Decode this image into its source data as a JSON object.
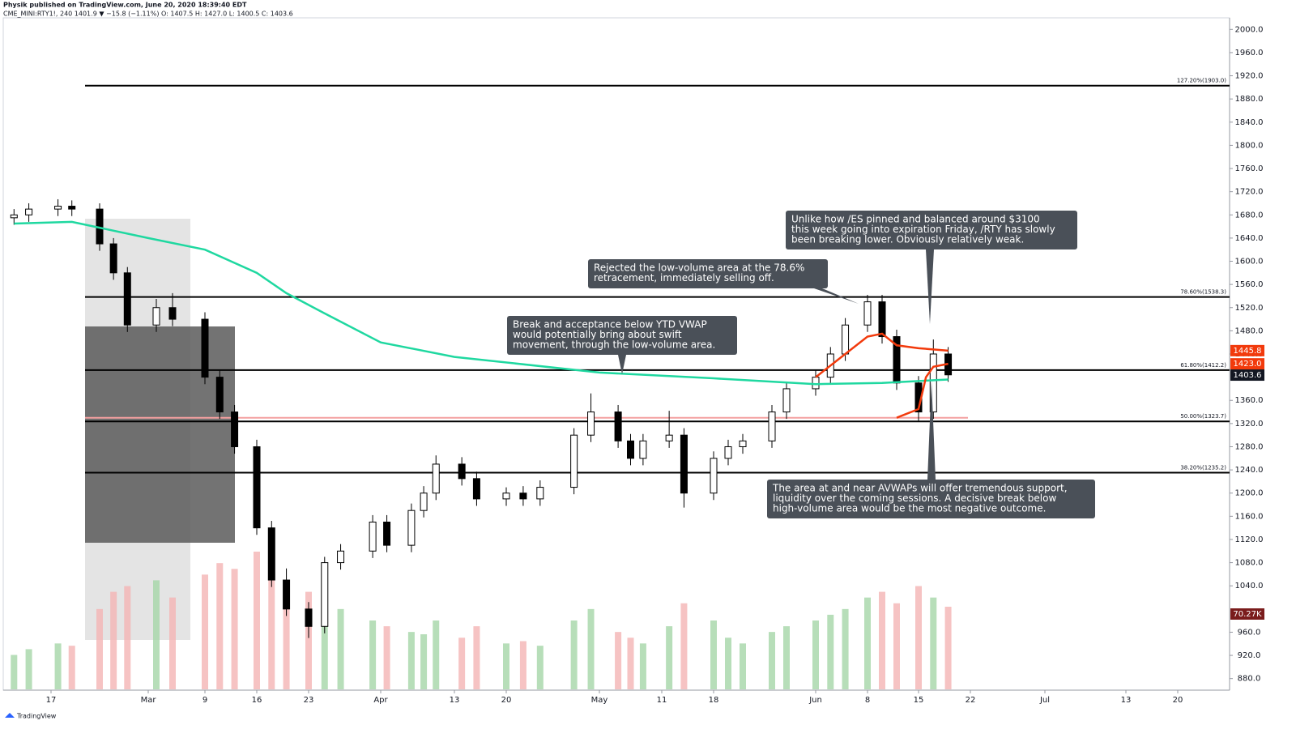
{
  "chart_data": {
    "type": "candlestick",
    "header": "Physik published on TradingView.com, June 20, 2020 18:39:40 EDT",
    "subheader": "CME_MINI:RTY1!, 240  1401.9 ▼ −15.8 (−1.11%) O: 1407.5 H: 1427.0 L: 1400.5 C: 1403.6",
    "footer": "TradingView",
    "x": [
      "Feb 12",
      "Feb 14",
      "Feb 18",
      "Feb 20",
      "Feb 24",
      "Feb 26",
      "Feb 28",
      "Mar 3",
      "Mar 5",
      "Mar 9",
      "Mar 11",
      "Mar 13",
      "Mar 16",
      "Mar 18",
      "Mar 20",
      "Mar 23",
      "Mar 25",
      "Mar 27",
      "Mar 31",
      "Apr 2",
      "Apr 6",
      "Apr 8",
      "Apr 10",
      "Apr 14",
      "Apr 16",
      "Apr 20",
      "Apr 22",
      "Apr 24",
      "Apr 28",
      "Apr 30",
      "May 4",
      "May 6",
      "May 8",
      "May 12",
      "May 14",
      "May 18",
      "May 20",
      "May 22",
      "May 26",
      "May 28",
      "Jun 1",
      "Jun 3",
      "Jun 5",
      "Jun 8",
      "Jun 10",
      "Jun 12",
      "Jun 15",
      "Jun 17",
      "Jun 19"
    ],
    "open": [
      1675,
      1680,
      1690,
      1695,
      1690,
      1630,
      1580,
      1490,
      1520,
      1500,
      1400,
      1340,
      1280,
      1140,
      1050,
      1000,
      970,
      1080,
      1100,
      1150,
      1110,
      1170,
      1200,
      1250,
      1225,
      1190,
      1200,
      1190,
      1210,
      1300,
      1340,
      1290,
      1260,
      1290,
      1300,
      1200,
      1260,
      1280,
      1290,
      1340,
      1380,
      1400,
      1440,
      1490,
      1530,
      1470,
      1390,
      1340,
      1440
    ],
    "high": [
      1690,
      1700,
      1707,
      1705,
      1700,
      1640,
      1590,
      1535,
      1545,
      1512,
      1412,
      1352,
      1292,
      1152,
      1070,
      1012,
      1090,
      1112,
      1162,
      1162,
      1182,
      1212,
      1265,
      1262,
      1237,
      1210,
      1212,
      1222,
      1312,
      1372,
      1352,
      1302,
      1302,
      1342,
      1312,
      1272,
      1292,
      1302,
      1352,
      1392,
      1412,
      1452,
      1502,
      1542,
      1542,
      1482,
      1402,
      1465,
      1452
    ],
    "low": [
      1663,
      1668,
      1678,
      1678,
      1618,
      1568,
      1478,
      1478,
      1488,
      1388,
      1328,
      1268,
      1128,
      1038,
      988,
      950,
      958,
      1068,
      1088,
      1098,
      1098,
      1158,
      1188,
      1213,
      1178,
      1178,
      1178,
      1178,
      1198,
      1288,
      1278,
      1248,
      1248,
      1278,
      1175,
      1188,
      1248,
      1268,
      1278,
      1328,
      1368,
      1388,
      1428,
      1478,
      1458,
      1378,
      1323,
      1328,
      1392
    ],
    "close": [
      1680,
      1690,
      1695,
      1690,
      1630,
      1580,
      1490,
      1520,
      1500,
      1400,
      1340,
      1280,
      1140,
      1050,
      1000,
      970,
      1080,
      1100,
      1150,
      1110,
      1170,
      1200,
      1250,
      1225,
      1190,
      1200,
      1190,
      1210,
      1300,
      1340,
      1290,
      1260,
      1290,
      1300,
      1200,
      1260,
      1280,
      1290,
      1340,
      1380,
      1400,
      1440,
      1490,
      1530,
      1470,
      1390,
      1340,
      1440,
      1404
    ],
    "volume": [
      30,
      35,
      40,
      38,
      70,
      85,
      90,
      95,
      80,
      100,
      110,
      105,
      120,
      95,
      90,
      85,
      75,
      70,
      60,
      55,
      50,
      48,
      60,
      45,
      55,
      40,
      42,
      38,
      60,
      70,
      50,
      45,
      40,
      55,
      75,
      60,
      45,
      40,
      50,
      55,
      60,
      65,
      70,
      80,
      85,
      75,
      90,
      80,
      72
    ],
    "lines": [
      {
        "color": "#1fd8a0",
        "x": [
          "Feb 12",
          "Feb 20",
          "Mar 2",
          "Mar 9",
          "Mar 16",
          "Mar 20",
          "Mar 25",
          "Apr 1",
          "Apr 13",
          "May 1",
          "May 18",
          "Jun 1",
          "Jun 10",
          "Jun 19"
        ],
        "values": [
          1665,
          1668,
          1640,
          1620,
          1580,
          1545,
          1510,
          1460,
          1435,
          1408,
          1398,
          1388,
          1390,
          1396
        ]
      },
      {
        "color": "#f23a0c",
        "x": [
          "Jun 1",
          "Jun 4",
          "Jun 8",
          "Jun 10",
          "Jun 12",
          "Jun 15",
          "Jun 19"
        ],
        "values": [
          1400,
          1430,
          1470,
          1475,
          1455,
          1450,
          1445.8
        ]
      },
      {
        "color": "#f23a0c",
        "x": [
          "Jun 12",
          "Jun 15",
          "Jun 16",
          "Jun 17",
          "Jun 19"
        ],
        "values": [
          1330,
          1345,
          1400,
          1418,
          1423
        ]
      }
    ],
    "levels": [
      {
        "value": 1903,
        "label": "127.20%(1903.0)",
        "color": "#000000"
      },
      {
        "value": 1538.3,
        "label": "78.60%(1538.3)",
        "color": "#000000"
      },
      {
        "value": 1412.2,
        "label": "61.80%(1412.2)",
        "color": "#000000"
      },
      {
        "value": 1323.7,
        "label": "50.00%(1323.7)",
        "color": "#000000"
      },
      {
        "value": 1235.2,
        "label": "38.20%(1235.2)",
        "color": "#000000"
      },
      {
        "value": 1330,
        "color": "#f4a0a0"
      }
    ],
    "price_tags": [
      {
        "value": 1445.8,
        "label": "1445.8",
        "color": "#f23a0c"
      },
      {
        "value": 1423.0,
        "label": "1423.0",
        "color": "#f23a0c"
      },
      {
        "value": 1403.6,
        "label": "1403.6",
        "color": "#131722"
      }
    ],
    "volume_tag": {
      "label": "70.27K",
      "color": "#7a1c1c"
    },
    "annotations": [
      {
        "lines": [
          "Unlike how /ES pinned and balanced around $3100",
          "this week going into expiration Friday, /RTY has slowly",
          "been breaking lower. Obviously relatively weak."
        ]
      },
      {
        "lines": [
          "Rejected the low-volume area at the 78.6%",
          "retracement, immediately selling off."
        ]
      },
      {
        "lines": [
          "Break and acceptance below YTD VWAP",
          "would potentially bring about swift",
          "movement, through the low-volume area."
        ]
      },
      {
        "lines": [
          "The area at and near AVWAPs will offer tremendous support,",
          "liquidity over the coming sessions. A decisive break below",
          "high-volume area would be the most negative outcome."
        ]
      }
    ],
    "ylim": [
      860,
      2020
    ],
    "yticks": [
      {
        "value": 2000,
        "label": "2000.0"
      },
      {
        "value": 1960,
        "label": "1960.0"
      },
      {
        "value": 1920,
        "label": "1920.0"
      },
      {
        "value": 1880,
        "label": "1880.0"
      },
      {
        "value": 1840,
        "label": "1840.0"
      },
      {
        "value": 1800,
        "label": "1800.0"
      },
      {
        "value": 1760,
        "label": "1760.0"
      },
      {
        "value": 1720,
        "label": "1720.0"
      },
      {
        "value": 1680,
        "label": "1680.0"
      },
      {
        "value": 1640,
        "label": "1640.0"
      },
      {
        "value": 1600,
        "label": "1600.0"
      },
      {
        "value": 1560,
        "label": "1560.0"
      },
      {
        "value": 1520,
        "label": "1520.0"
      },
      {
        "value": 1480,
        "label": "1480.0"
      },
      {
        "value": 1440,
        "label": "1440.0"
      },
      {
        "value": 1360,
        "label": "1360.0"
      },
      {
        "value": 1320,
        "label": "1320.0"
      },
      {
        "value": 1280,
        "label": "1280.0"
      },
      {
        "value": 1240,
        "label": "1240.0"
      },
      {
        "value": 1200,
        "label": "1200.0"
      },
      {
        "value": 1160,
        "label": "1160.0"
      },
      {
        "value": 1120,
        "label": "1120.0"
      },
      {
        "value": 1080,
        "label": "1080.0"
      },
      {
        "value": 1040,
        "label": "1040.0"
      },
      {
        "value": 960,
        "label": "960.0"
      },
      {
        "value": 920,
        "label": "920.0"
      },
      {
        "value": 880,
        "label": "880.0"
      }
    ],
    "xticks": [
      {
        "value": "Feb 17",
        "label": "17"
      },
      {
        "value": "Mar 2",
        "label": "Mar"
      },
      {
        "value": "Mar 9",
        "label": "9"
      },
      {
        "value": "Mar 16",
        "label": "16"
      },
      {
        "value": "Mar 23",
        "label": "23"
      },
      {
        "value": "Apr 1",
        "label": "Apr"
      },
      {
        "value": "Apr 13",
        "label": "13"
      },
      {
        "value": "Apr 20",
        "label": "20"
      },
      {
        "value": "May 1",
        "label": "May"
      },
      {
        "value": "May 11",
        "label": "11"
      },
      {
        "value": "May 18",
        "label": "18"
      },
      {
        "value": "Jun 1",
        "label": "Jun"
      },
      {
        "value": "Jun 8",
        "label": "8"
      },
      {
        "value": "Jun 15",
        "label": "15"
      },
      {
        "value": "Jun 22",
        "label": "22"
      },
      {
        "value": "Jul 1",
        "label": "Jul"
      },
      {
        "value": "Jul 13",
        "label": "13"
      },
      {
        "value": "Jul 20",
        "label": "20"
      }
    ]
  }
}
